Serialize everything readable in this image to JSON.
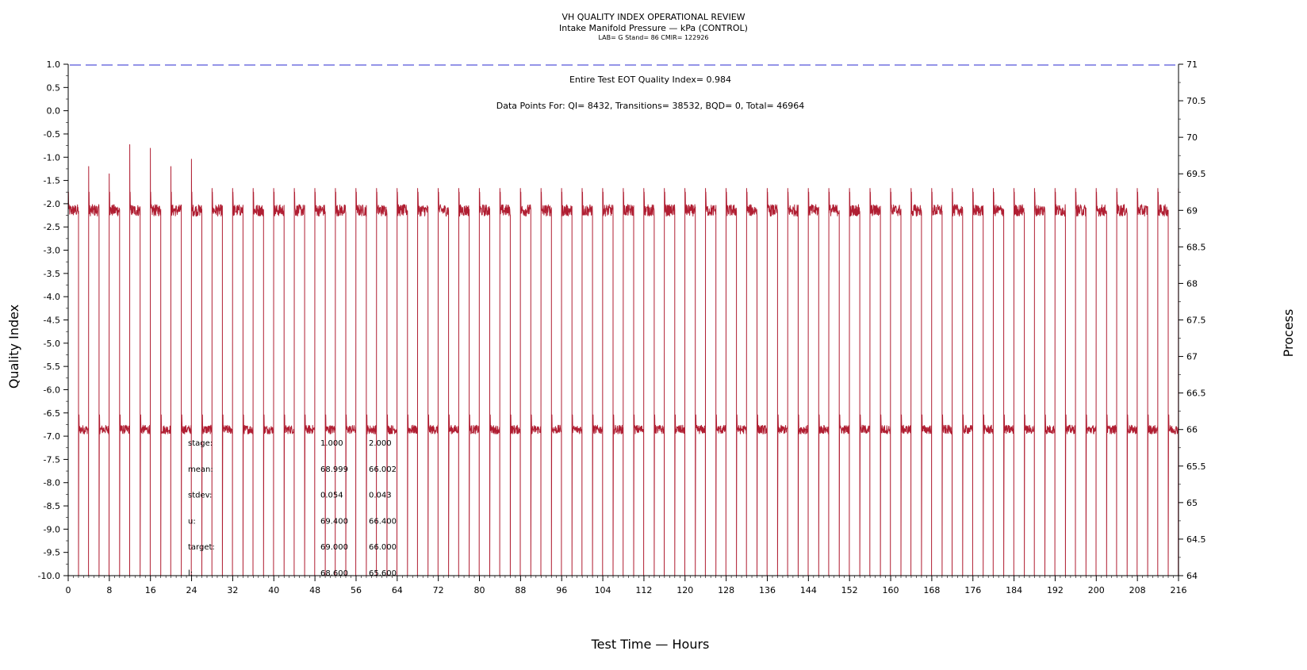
{
  "chart_data": {
    "type": "line",
    "title": "VH QUALITY INDEX OPERATIONAL REVIEW",
    "subtitle": "Intake Manifold Pressure — kPa (CONTROL)",
    "info": "LAB= G Stand= 86 CMIR= 122926",
    "xlabel": "Test Time — Hours",
    "ylabel_left": "Quality Index",
    "ylabel_right": "Process",
    "xlim": [
      0,
      216
    ],
    "ylim_left": [
      -10,
      1
    ],
    "ylim_right": [
      64,
      71
    ],
    "x_ticks": [
      0,
      8,
      16,
      24,
      32,
      40,
      48,
      56,
      64,
      72,
      80,
      88,
      96,
      104,
      112,
      120,
      128,
      136,
      144,
      152,
      160,
      168,
      176,
      184,
      192,
      200,
      208,
      216
    ],
    "y_left_ticks": [
      "1.0",
      "0.5",
      "0.0",
      "-0.5",
      "-1.0",
      "-1.5",
      "-2.0",
      "-2.5",
      "-3.0",
      "-3.5",
      "-4.0",
      "-4.5",
      "-5.0",
      "-5.5",
      "-6.0",
      "-6.5",
      "-7.0",
      "-7.5",
      "-8.0",
      "-8.5",
      "-9.0",
      "-9.5",
      "-10.0"
    ],
    "y_right_ticks": [
      "71",
      "70.5",
      "70",
      "69.5",
      "69",
      "68.5",
      "68",
      "67.5",
      "67",
      "66.5",
      "66",
      "65.5",
      "65",
      "64.5",
      "64"
    ],
    "annotation_qi": "Entire Test EOT Quality Index=   0.984",
    "annotation_points": "Data Points For: QI=  8432, Transitions= 38532, BQD=     0, Total= 46964",
    "quality_index_line": 0.984,
    "series": [
      {
        "axis": "right",
        "color": "#b01e32",
        "stage_levels": [
          69.0,
          66.0
        ],
        "cycle_hours": 4,
        "stage_hours": [
          2,
          2
        ]
      }
    ],
    "stats_table": {
      "rows": [
        {
          "label": "stage:",
          "v1": "1.000",
          "v2": "2.000"
        },
        {
          "label": "mean:",
          "v1": "68.999",
          "v2": "66.002"
        },
        {
          "label": "stdev:",
          "v1": "0.054",
          "v2": "0.043"
        },
        {
          "label": "u:",
          "v1": "69.400",
          "v2": "66.400"
        },
        {
          "label": "target:",
          "v1": "69.000",
          "v2": "66.000"
        },
        {
          "label": "l:",
          "v1": "68.600",
          "v2": "65.600"
        }
      ]
    },
    "colors": {
      "process_line": "#b01e32",
      "qi_line": "#2a2ad0",
      "axes": "#000000"
    }
  }
}
